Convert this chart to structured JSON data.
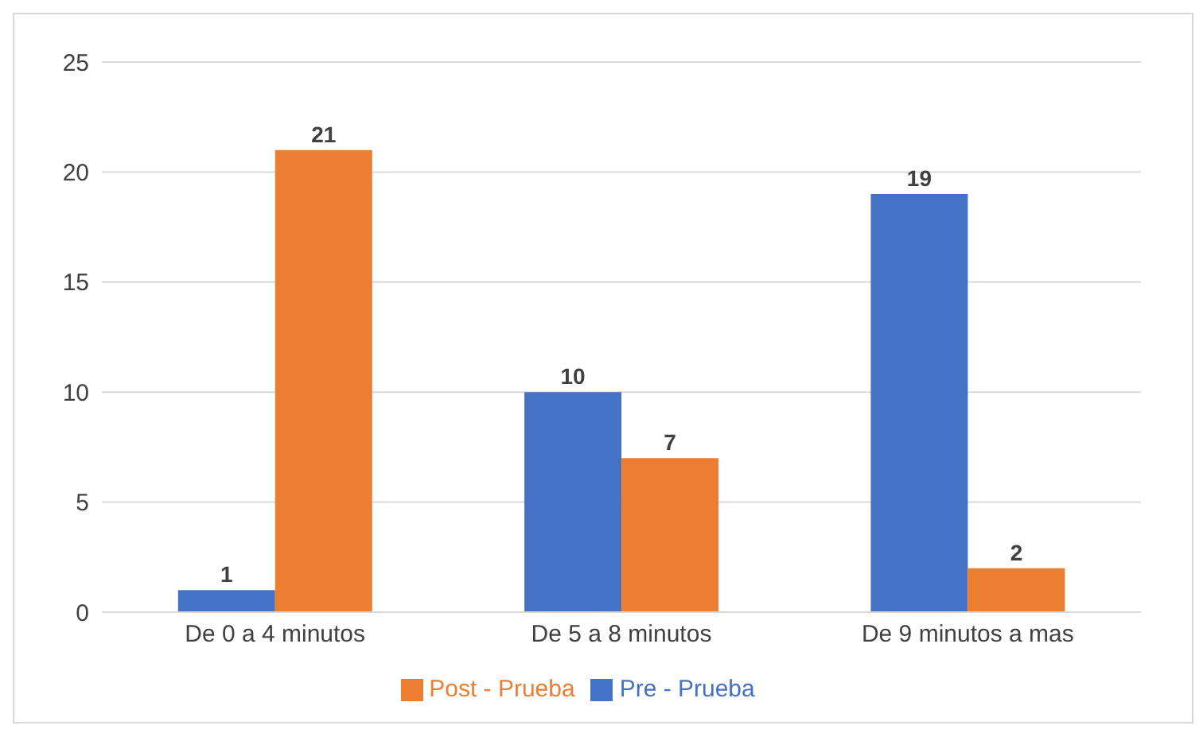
{
  "chart_data": {
    "type": "bar",
    "categories": [
      "De 0 a 4 minutos",
      "De 5 a 8 minutos",
      "De 9 minutos a mas"
    ],
    "series": [
      {
        "name": "Pre - Prueba",
        "color": "#4472c4",
        "values": [
          1,
          10,
          19
        ]
      },
      {
        "name": "Post - Prueba",
        "color": "#ed7d31",
        "values": [
          21,
          7,
          2
        ]
      }
    ],
    "ylim": [
      0,
      25
    ],
    "yticks": [
      0,
      5,
      10,
      15,
      20,
      25
    ],
    "grid": "y",
    "legend": "bottom",
    "data_labels": true
  }
}
